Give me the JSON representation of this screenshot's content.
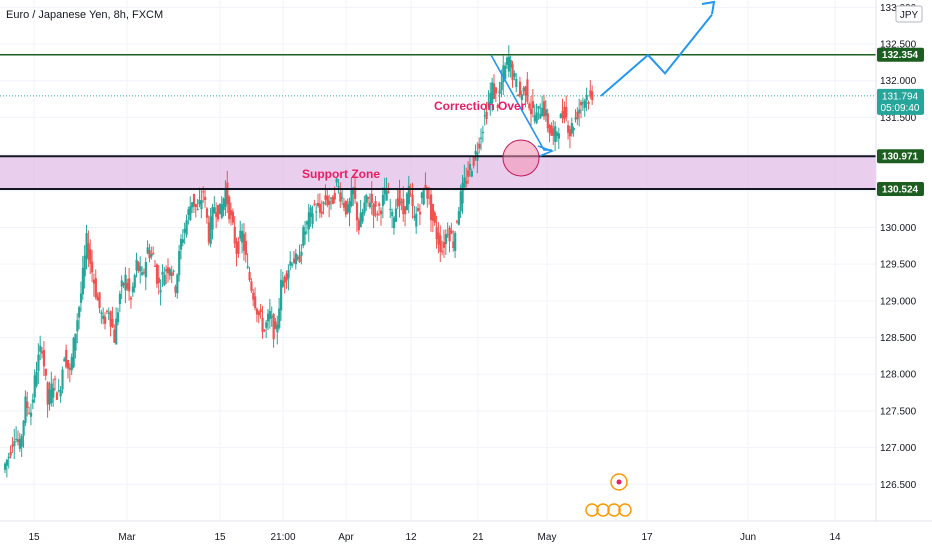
{
  "chart_data": {
    "type": "candlestick",
    "title": "Euro / Japanese Yen, 8h, FXCM",
    "currency": "JPY",
    "x_ticks": [
      "15",
      "Mar",
      "15",
      "21:00",
      "Apr",
      "12",
      "21",
      "May",
      "17",
      "Jun",
      "14"
    ],
    "y_ticks": [
      "126.500",
      "127.000",
      "127.500",
      "128.000",
      "128.500",
      "129.000",
      "129.500",
      "130.000",
      "130.500",
      "131.000",
      "131.500",
      "132.000",
      "132.500",
      "133.000"
    ],
    "ylim": [
      126.0,
      133.1
    ],
    "horizontal_lines": [
      {
        "value": 132.354,
        "label": "132.354",
        "color": "#1b5e20"
      },
      {
        "value": 130.971,
        "label": "130.971",
        "color": "#131722"
      },
      {
        "value": 130.524,
        "label": "130.524",
        "color": "#131722"
      }
    ],
    "support_zone": {
      "low": 130.524,
      "high": 130.971,
      "label": "Support Zone",
      "color": "#e1bee7"
    },
    "current_price": {
      "value": 131.794,
      "label": "131.794",
      "countdown": "05:09:40",
      "color": "#26a69a"
    },
    "annotations": [
      {
        "text": "Correction Over",
        "kind": "label"
      }
    ],
    "price_path": [
      126.7,
      126.9,
      127.2,
      127.0,
      127.6,
      127.5,
      128.1,
      128.4,
      127.6,
      127.9,
      127.7,
      128.3,
      128.0,
      128.6,
      129.1,
      129.8,
      129.4,
      129.0,
      128.7,
      128.9,
      128.5,
      129.1,
      129.3,
      129.0,
      129.5,
      129.3,
      129.7,
      129.6,
      129.2,
      129.4,
      129.5,
      129.2,
      129.8,
      130.1,
      130.4,
      130.2,
      130.5,
      129.9,
      130.3,
      130.2,
      130.5,
      130.1,
      129.7,
      129.9,
      129.4,
      129.1,
      128.8,
      128.6,
      128.8,
      128.5,
      129.2,
      129.4,
      129.6,
      129.5,
      129.9,
      130.1,
      130.3,
      130.2,
      130.4,
      130.3,
      130.6,
      130.4,
      130.2,
      130.5,
      130.0,
      130.3,
      130.4,
      130.2,
      130.3,
      130.5,
      130.1,
      130.4,
      130.2,
      130.5,
      130.1,
      130.3,
      130.6,
      130.2,
      129.9,
      129.7,
      130.0,
      129.8,
      130.3,
      130.6,
      130.8,
      131.0,
      131.3,
      131.6,
      131.9,
      131.7,
      132.1,
      132.3,
      132.0,
      131.8,
      131.9,
      131.6,
      131.5,
      131.7,
      131.4,
      131.2,
      131.4,
      131.6,
      131.3,
      131.5,
      131.7,
      131.8,
      131.7
    ],
    "projection": [
      131.794,
      132.35,
      132.1,
      132.9
    ]
  }
}
